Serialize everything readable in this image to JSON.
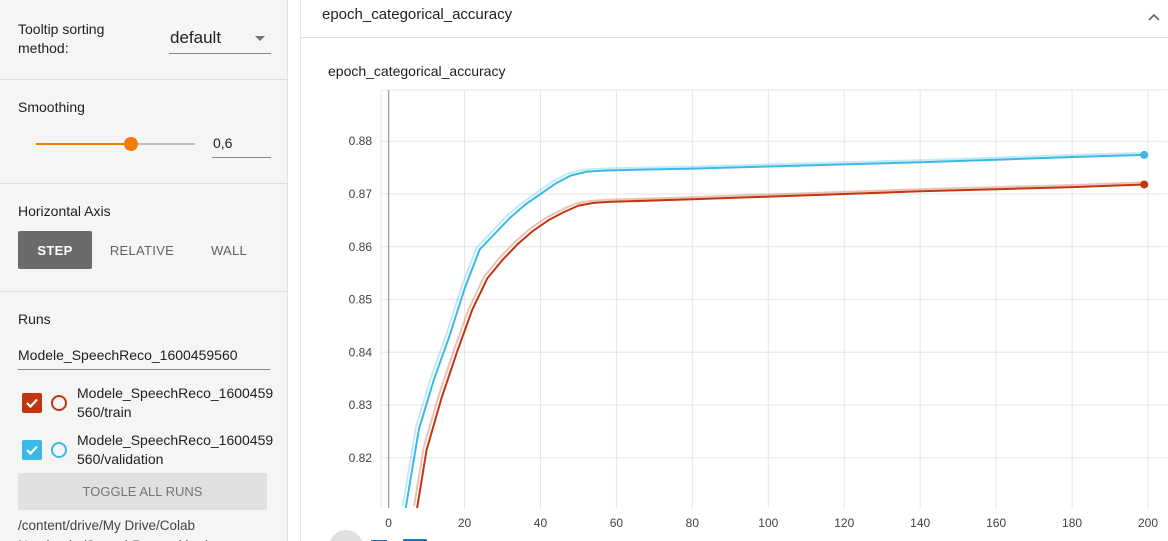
{
  "sidebar": {
    "tooltip_sorting": {
      "label": "Tooltip sorting method:",
      "value": "default"
    },
    "smoothing": {
      "label": "Smoothing",
      "value": "0,6",
      "level": 0.6
    },
    "horizontal_axis": {
      "label": "Horizontal Axis",
      "options": [
        "STEP",
        "RELATIVE",
        "WALL"
      ],
      "active": "STEP"
    },
    "runs": {
      "label": "Runs",
      "filter_value": "Modele_SpeechReco_1600459560",
      "items": [
        {
          "name": "Modele_SpeechReco_1600459560/train",
          "checked": true,
          "color": "#c1360f"
        },
        {
          "name": "Modele_SpeechReco_1600459560/validation",
          "checked": true,
          "color": "#3ab8e6"
        }
      ],
      "toggle_label": "TOGGLE ALL RUNS",
      "path": "/content/drive/My Drive/Colab Notebooks/SpeechRecognition/"
    }
  },
  "card": {
    "title": "epoch_categorical_accuracy",
    "chart_title": "epoch_categorical_accuracy"
  },
  "chart_data": {
    "type": "line",
    "title": "epoch_categorical_accuracy",
    "xlabel": "",
    "ylabel": "",
    "xlim": [
      -2,
      205
    ],
    "ylim": [
      0.8105,
      0.8897
    ],
    "x_ticks": [
      0,
      20,
      40,
      60,
      80,
      100,
      120,
      140,
      160,
      180,
      200
    ],
    "y_ticks": [
      0.82,
      0.83,
      0.84,
      0.85,
      0.86,
      0.87,
      0.88
    ],
    "x_tick_labels": [
      "0",
      "20",
      "40",
      "60",
      "80",
      "100",
      "120",
      "140",
      "160",
      "180",
      "200"
    ],
    "y_tick_labels": [
      "0.82",
      "0.83",
      "0.84",
      "0.85",
      "0.86",
      "0.87",
      "0.88"
    ],
    "grid": true,
    "series": [
      {
        "name": "Modele_SpeechReco_1600459560/validation",
        "color": "#3ab8e6",
        "x": [
          4.5,
          8,
          12,
          16,
          20,
          24,
          28,
          32,
          36,
          40,
          44,
          48,
          52,
          56,
          60,
          80,
          100,
          120,
          140,
          160,
          180,
          199
        ],
        "y": [
          0.8105,
          0.8255,
          0.835,
          0.843,
          0.852,
          0.8595,
          0.8625,
          0.8655,
          0.868,
          0.87,
          0.872,
          0.8735,
          0.8742,
          0.8744,
          0.8745,
          0.8748,
          0.8752,
          0.8756,
          0.876,
          0.8765,
          0.877,
          0.8774
        ]
      },
      {
        "name": "Modele_SpeechReco_1600459560/train",
        "color": "#c1360f",
        "x": [
          7.5,
          10,
          14,
          18,
          22,
          26,
          30,
          34,
          38,
          42,
          46,
          50,
          54,
          58,
          62,
          80,
          100,
          120,
          140,
          160,
          180,
          199
        ],
        "y": [
          0.8105,
          0.8215,
          0.8315,
          0.84,
          0.848,
          0.854,
          0.8575,
          0.8605,
          0.863,
          0.865,
          0.8665,
          0.8678,
          0.8683,
          0.8685,
          0.8686,
          0.869,
          0.8695,
          0.87,
          0.8705,
          0.8709,
          0.8713,
          0.8718
        ]
      }
    ]
  }
}
